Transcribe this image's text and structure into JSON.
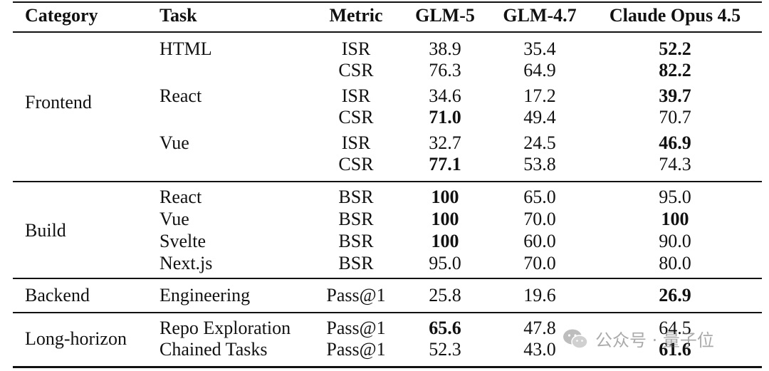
{
  "headers": {
    "category": "Category",
    "task": "Task",
    "metric": "Metric",
    "glm5": "GLM-5",
    "glm47": "GLM-4.7",
    "claude": "Claude Opus 4.5"
  },
  "groups": [
    {
      "category": "Frontend",
      "rows": [
        {
          "task": "HTML",
          "metric": "ISR",
          "glm5": "38.9",
          "glm47": "35.4",
          "claude": "52.2",
          "bold": "claude"
        },
        {
          "task": "",
          "metric": "CSR",
          "glm5": "76.3",
          "glm47": "64.9",
          "claude": "82.2",
          "bold": "claude"
        },
        {
          "task": "React",
          "metric": "ISR",
          "glm5": "34.6",
          "glm47": "17.2",
          "claude": "39.7",
          "bold": "claude"
        },
        {
          "task": "",
          "metric": "CSR",
          "glm5": "71.0",
          "glm47": "49.4",
          "claude": "70.7",
          "bold": "glm5"
        },
        {
          "task": "Vue",
          "metric": "ISR",
          "glm5": "32.7",
          "glm47": "24.5",
          "claude": "46.9",
          "bold": "claude"
        },
        {
          "task": "",
          "metric": "CSR",
          "glm5": "77.1",
          "glm47": "53.8",
          "claude": "74.3",
          "bold": "glm5"
        }
      ]
    },
    {
      "category": "Build",
      "rows": [
        {
          "task": "React",
          "metric": "BSR",
          "glm5": "100",
          "glm47": "65.0",
          "claude": "95.0",
          "bold": "glm5"
        },
        {
          "task": "Vue",
          "metric": "BSR",
          "glm5": "100",
          "glm47": "70.0",
          "claude": "100",
          "bold": "glm5,claude"
        },
        {
          "task": "Svelte",
          "metric": "BSR",
          "glm5": "100",
          "glm47": "60.0",
          "claude": "90.0",
          "bold": "glm5"
        },
        {
          "task": "Next.js",
          "metric": "BSR",
          "glm5": "95.0",
          "glm47": "70.0",
          "claude": "80.0",
          "bold": ""
        }
      ]
    },
    {
      "category": "Backend",
      "rows": [
        {
          "task": "Engineering",
          "metric": "Pass@1",
          "glm5": "25.8",
          "glm47": "19.6",
          "claude": "26.9",
          "bold": "claude"
        }
      ]
    },
    {
      "category": "Long-horizon",
      "rows": [
        {
          "task": "Repo Exploration",
          "metric": "Pass@1",
          "glm5": "65.6",
          "glm47": "47.8",
          "claude": "64.5",
          "bold": "glm5"
        },
        {
          "task": "Chained Tasks",
          "metric": "Pass@1",
          "glm5": "52.3",
          "glm47": "43.0",
          "claude": "61.6",
          "bold": "claude"
        }
      ]
    }
  ],
  "watermark": {
    "text": "公众号 · 量子位",
    "icon": "wechat-logo-icon"
  }
}
